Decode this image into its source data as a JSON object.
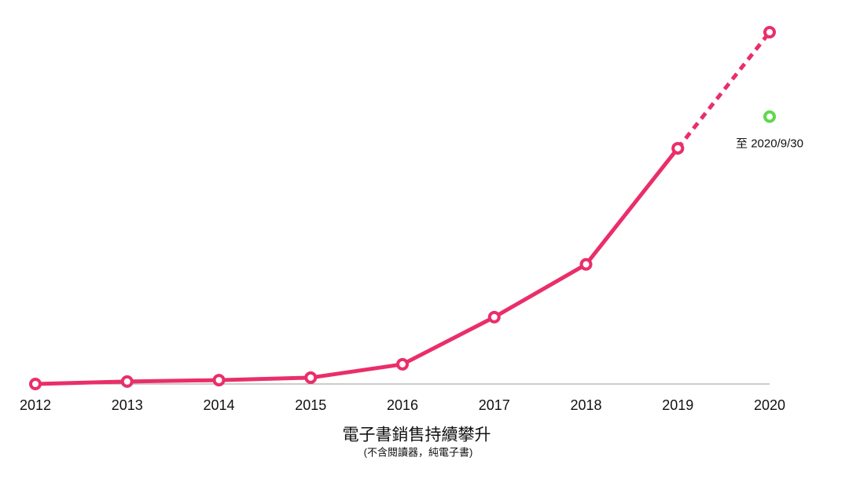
{
  "chart_data": {
    "type": "line",
    "title": "電子書銷售持續攀升",
    "subtitle": "(不含閱讀器，純電子書)",
    "categories": [
      "2012",
      "2013",
      "2014",
      "2015",
      "2016",
      "2017",
      "2018",
      "2019",
      "2020"
    ],
    "ylim": [
      0,
      100
    ],
    "series": [
      {
        "color": "#ea2e6a",
        "dashed": false,
        "values": [
          0,
          0.7,
          1.1,
          1.8,
          5.6,
          19,
          34,
          67,
          null
        ]
      },
      {
        "color": "#ea2e6a",
        "dashed": true,
        "values": [
          null,
          null,
          null,
          null,
          null,
          null,
          null,
          67,
          100
        ]
      },
      {
        "color": "#5fd84a",
        "dashed": false,
        "values": [
          null,
          null,
          null,
          null,
          null,
          null,
          null,
          null,
          76
        ]
      }
    ],
    "annotation": {
      "text": "至 2020/9/30",
      "series": 2,
      "index": 8
    }
  }
}
